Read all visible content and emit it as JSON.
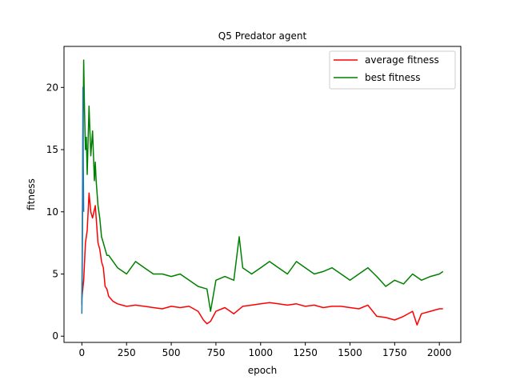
{
  "chart_data": {
    "type": "line",
    "title": "Q5 Predator agent",
    "xlabel": "epoch",
    "ylabel": "fitness",
    "xlim": [
      -100,
      2120
    ],
    "ylim": [
      -0.5,
      23.3
    ],
    "xticks": [
      0,
      250,
      500,
      750,
      1000,
      1250,
      1500,
      1750,
      2000
    ],
    "yticks": [
      0,
      5,
      10,
      15,
      20
    ],
    "grid": false,
    "legend_position": "top-right",
    "series": [
      {
        "name": "average fitness",
        "color": "#ff0000",
        "x": [
          0,
          10,
          20,
          30,
          40,
          50,
          60,
          75,
          90,
          100,
          110,
          120,
          130,
          140,
          150,
          175,
          200,
          225,
          250,
          300,
          350,
          400,
          450,
          500,
          550,
          600,
          650,
          680,
          700,
          720,
          750,
          800,
          850,
          900,
          950,
          1000,
          1050,
          1100,
          1150,
          1200,
          1250,
          1300,
          1350,
          1400,
          1450,
          1500,
          1550,
          1600,
          1650,
          1700,
          1750,
          1800,
          1850,
          1875,
          1900,
          1950,
          2000,
          2020
        ],
        "y": [
          3.0,
          4.5,
          7.5,
          8.5,
          11.5,
          10.0,
          9.5,
          10.5,
          7.5,
          7.0,
          6.0,
          5.5,
          4.0,
          3.8,
          3.2,
          2.8,
          2.6,
          2.5,
          2.4,
          2.5,
          2.4,
          2.3,
          2.2,
          2.4,
          2.3,
          2.4,
          2.0,
          1.3,
          1.0,
          1.2,
          2.0,
          2.3,
          1.8,
          2.4,
          2.5,
          2.6,
          2.7,
          2.6,
          2.5,
          2.6,
          2.4,
          2.5,
          2.3,
          2.4,
          2.4,
          2.3,
          2.2,
          2.5,
          1.6,
          1.5,
          1.3,
          1.6,
          2.0,
          0.9,
          1.8,
          2.0,
          2.2,
          2.2
        ]
      },
      {
        "name": "best fitness",
        "color": "#008000",
        "x": [
          0,
          5,
          10,
          15,
          20,
          25,
          30,
          40,
          50,
          60,
          70,
          75,
          80,
          90,
          100,
          110,
          120,
          130,
          140,
          150,
          175,
          200,
          250,
          300,
          350,
          400,
          450,
          500,
          550,
          600,
          650,
          700,
          720,
          750,
          800,
          850,
          880,
          900,
          950,
          1000,
          1050,
          1100,
          1150,
          1200,
          1250,
          1300,
          1350,
          1400,
          1450,
          1500,
          1550,
          1600,
          1650,
          1700,
          1750,
          1800,
          1850,
          1900,
          1950,
          2000,
          2020
        ],
        "y": [
          2.5,
          13.5,
          22.2,
          18.0,
          15.0,
          16.0,
          13.0,
          18.5,
          14.5,
          16.5,
          12.5,
          14.0,
          12.5,
          10.5,
          9.5,
          8.0,
          7.5,
          7.0,
          6.5,
          6.5,
          6.0,
          5.5,
          5.0,
          6.0,
          5.5,
          5.0,
          5.0,
          4.8,
          5.0,
          4.5,
          4.0,
          3.8,
          2.0,
          4.5,
          4.8,
          4.5,
          8.0,
          5.5,
          5.0,
          5.5,
          6.0,
          5.5,
          5.0,
          6.0,
          5.5,
          5.0,
          5.2,
          5.5,
          5.0,
          4.5,
          5.0,
          5.5,
          4.8,
          4.0,
          4.5,
          4.2,
          5.0,
          4.5,
          4.8,
          5.0,
          5.2
        ]
      },
      {
        "color": "#1f77b4",
        "x": [
          0,
          2,
          4,
          6,
          8,
          10
        ],
        "y": [
          1.8,
          5.0,
          12.0,
          20.0,
          14.0,
          10.0
        ]
      }
    ]
  }
}
